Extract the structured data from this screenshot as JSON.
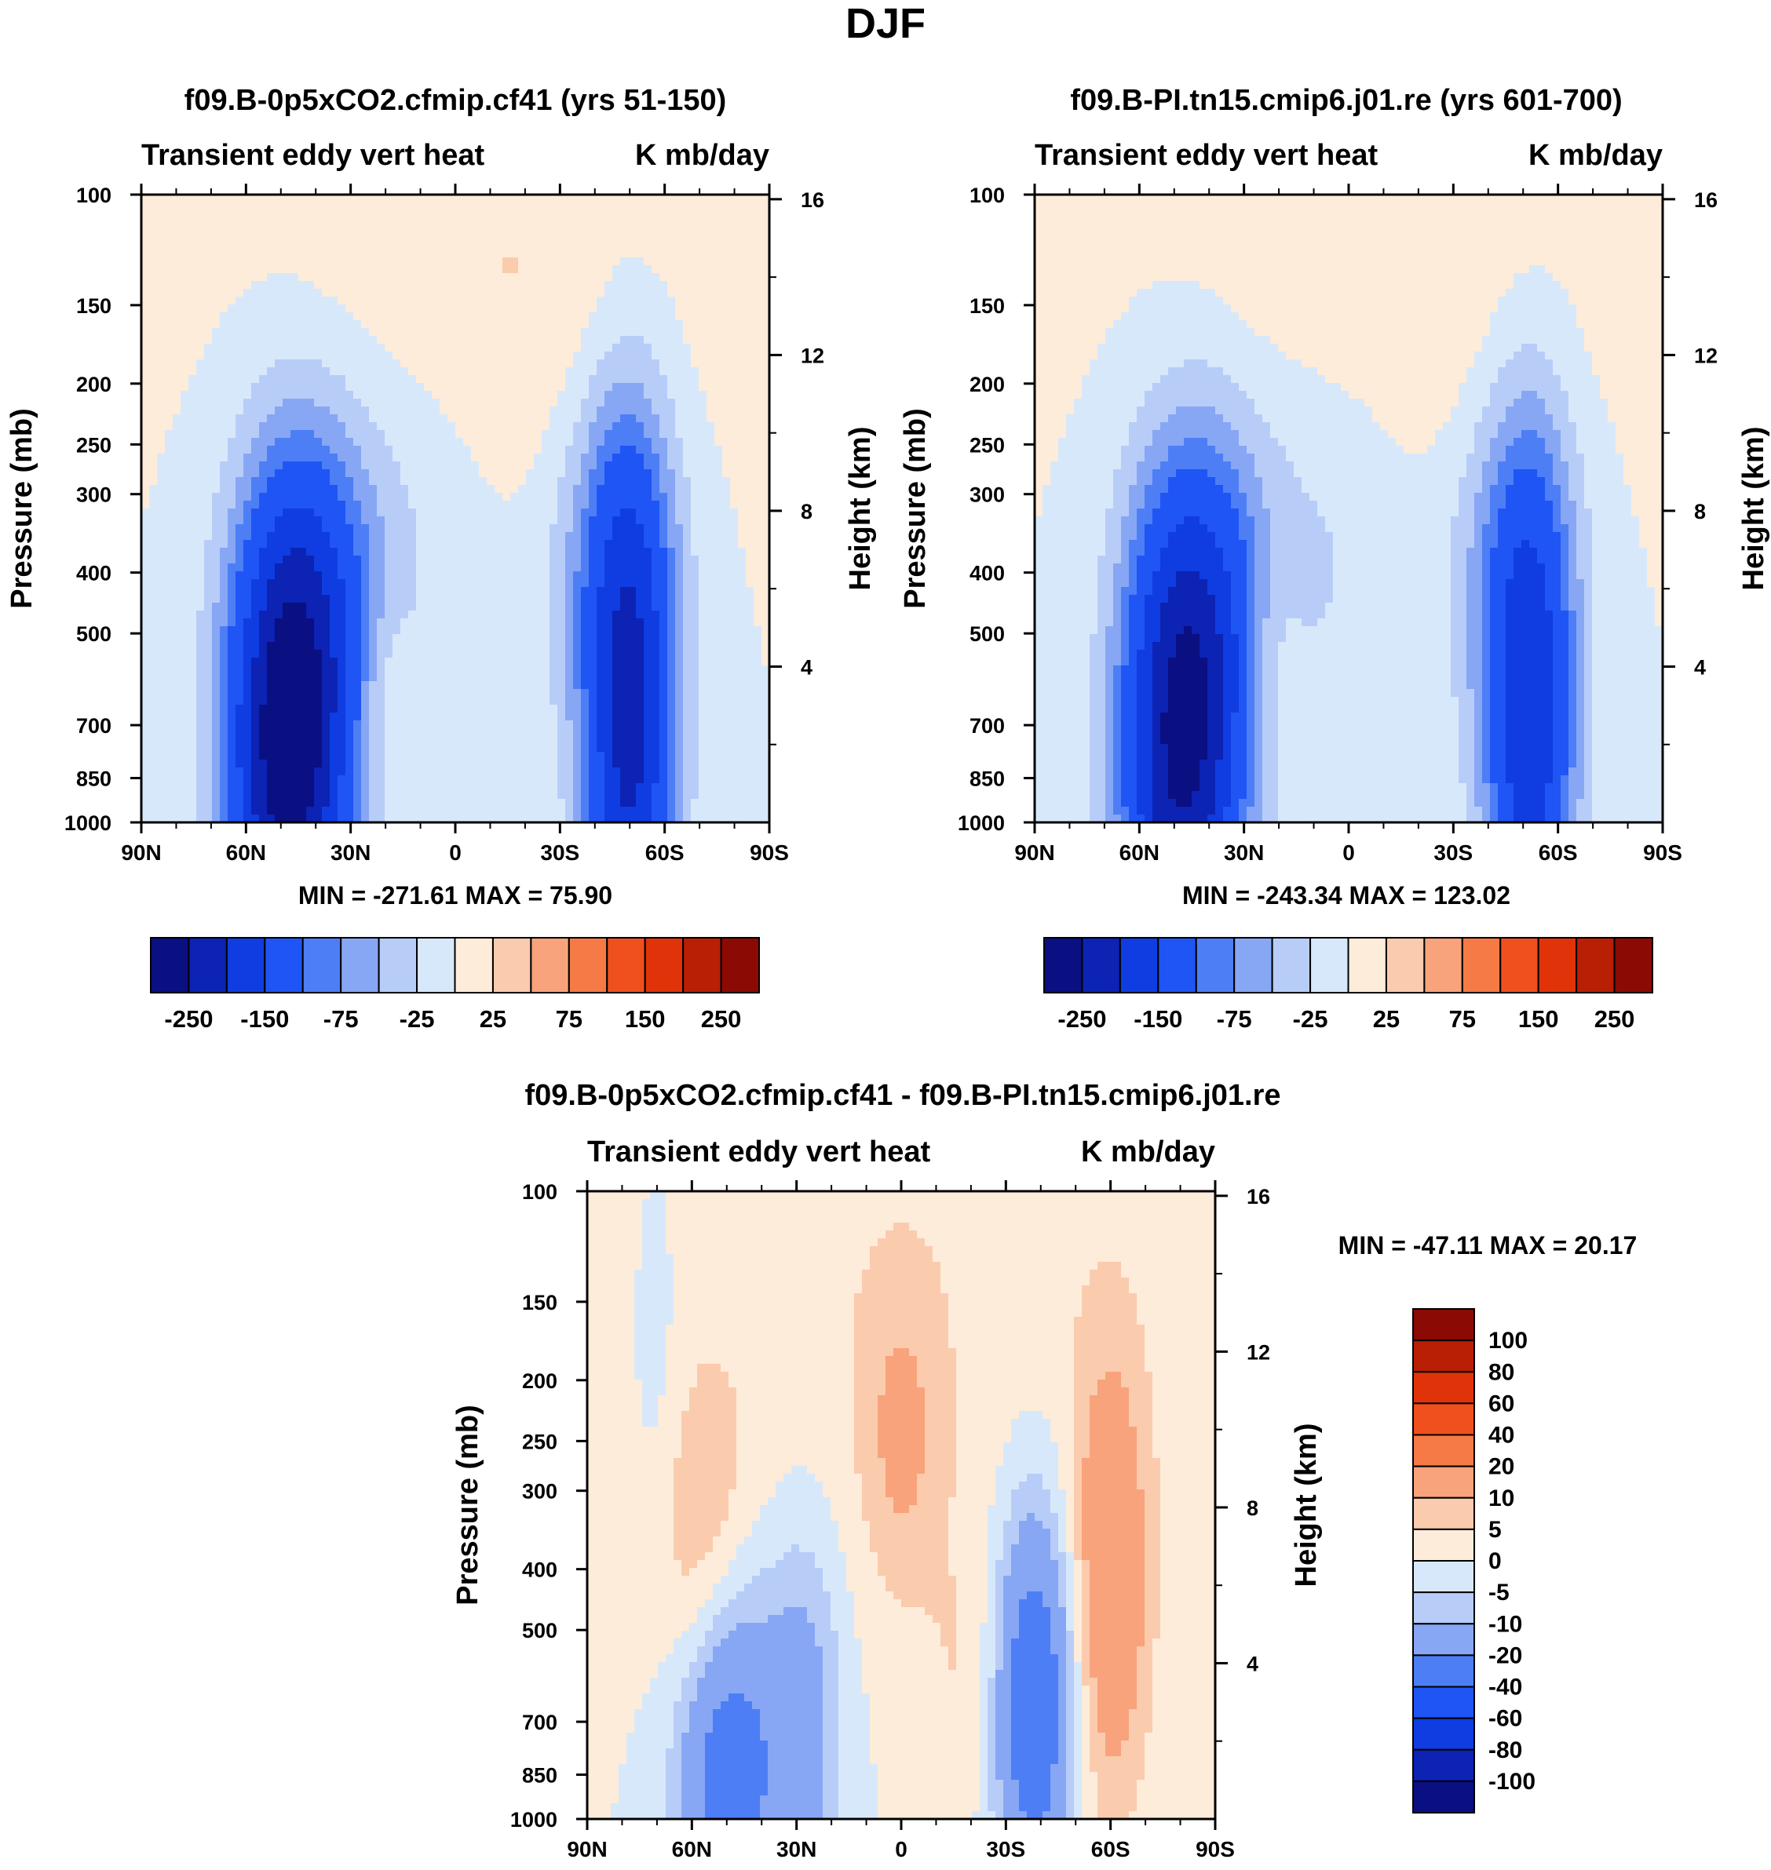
{
  "page_title": "DJF",
  "chart_data": [
    {
      "type": "heatmap",
      "title": "f09.B-0p5xCO2.cfmip.cf41 (yrs 51-150)",
      "left_subtitle": "Transient eddy vert heat",
      "right_subtitle": "K mb/day",
      "ylabel": "Pressure (mb)",
      "ylabel_right": "Height (km)",
      "x_ticks": [
        "90N",
        "60N",
        "30N",
        "0",
        "30S",
        "60S",
        "90S"
      ],
      "y_ticks": [
        "100",
        "150",
        "200",
        "250",
        "300",
        "400",
        "500",
        "700",
        "850",
        "1000"
      ],
      "y_ticks_right": [
        "16",
        "12",
        "8",
        "4"
      ],
      "minmax": "MIN = -271.61   MAX =  75.90",
      "colorbar_labels": [
        "-250",
        "-150",
        "-75",
        "-25",
        "25",
        "75",
        "150",
        "250"
      ],
      "fields": [
        {
          "lat": 48,
          "p": 800,
          "amp": -270,
          "slat": 12,
          "sp": 0.62
        },
        {
          "lat": 40,
          "p": 430,
          "amp": -90,
          "slat": 14,
          "sp": 0.5
        },
        {
          "lat": -50,
          "p": 750,
          "amp": -200,
          "slat": 9,
          "sp": 0.75
        },
        {
          "lat": -45,
          "p": 380,
          "amp": -60,
          "slat": 13,
          "sp": 0.5
        },
        {
          "lat": 10,
          "p": 300,
          "amp": -22,
          "slat": 16,
          "sp": 0.55
        },
        {
          "lat": 20,
          "p": 620,
          "amp": 30,
          "slat": 6,
          "sp": 0.2
        },
        {
          "lat": -10,
          "p": 140,
          "amp": 28,
          "slat": 40,
          "sp": 0.55
        }
      ]
    },
    {
      "type": "heatmap",
      "title": "f09.B-PI.tn15.cmip6.j01.re (yrs 601-700)",
      "left_subtitle": "Transient eddy vert heat",
      "right_subtitle": "K mb/day",
      "ylabel": "Pressure (mb)",
      "ylabel_right": "Height (km)",
      "x_ticks": [
        "90N",
        "60N",
        "30N",
        "0",
        "30S",
        "60S",
        "90S"
      ],
      "y_ticks": [
        "100",
        "150",
        "200",
        "250",
        "300",
        "400",
        "500",
        "700",
        "850",
        "1000"
      ],
      "y_ticks_right": [
        "16",
        "12",
        "8",
        "4"
      ],
      "minmax": "MIN = -243.34   MAX = 123.02",
      "colorbar_labels": [
        "-250",
        "-150",
        "-75",
        "-25",
        "25",
        "75",
        "150",
        "250"
      ],
      "fields": [
        {
          "lat": 48,
          "p": 800,
          "amp": -240,
          "slat": 12,
          "sp": 0.62
        },
        {
          "lat": 40,
          "p": 430,
          "amp": -85,
          "slat": 14,
          "sp": 0.5
        },
        {
          "lat": -52,
          "p": 760,
          "amp": -170,
          "slat": 9,
          "sp": 0.75
        },
        {
          "lat": -47,
          "p": 380,
          "amp": -55,
          "slat": 13,
          "sp": 0.5
        },
        {
          "lat": 5,
          "p": 320,
          "amp": -28,
          "slat": 18,
          "sp": 0.6
        },
        {
          "lat": 22,
          "p": 560,
          "amp": 30,
          "slat": 6,
          "sp": 0.3
        },
        {
          "lat": -10,
          "p": 140,
          "amp": 28,
          "slat": 40,
          "sp": 0.55
        }
      ]
    },
    {
      "type": "heatmap",
      "title": "f09.B-0p5xCO2.cfmip.cf41 - f09.B-PI.tn15.cmip6.j01.re",
      "left_subtitle": "Transient eddy vert heat",
      "right_subtitle": "K mb/day",
      "ylabel": "Pressure (mb)",
      "ylabel_right": "Height (km)",
      "x_ticks": [
        "90N",
        "60N",
        "30N",
        "0",
        "30S",
        "60S",
        "90S"
      ],
      "y_ticks": [
        "100",
        "150",
        "200",
        "250",
        "300",
        "400",
        "500",
        "700",
        "850",
        "1000"
      ],
      "y_ticks_right": [
        "16",
        "12",
        "8",
        "4"
      ],
      "minmax": "MIN = -47.11   MAX =  20.17",
      "colorbar_labels": [
        "100",
        "80",
        "60",
        "40",
        "20",
        "10",
        "5",
        "0",
        "-5",
        "-10",
        "-20",
        "-40",
        "-60",
        "-80",
        "-100"
      ],
      "fields": [
        {
          "lat": 55,
          "p": 400,
          "amp": 14,
          "slat": 10,
          "sp": 0.45
        },
        {
          "lat": 50,
          "p": 800,
          "amp": -30,
          "slat": 10,
          "sp": 0.55
        },
        {
          "lat": 28,
          "p": 700,
          "amp": -14,
          "slat": 8,
          "sp": 0.5
        },
        {
          "lat": 0,
          "p": 250,
          "amp": 9,
          "slat": 8,
          "sp": 0.4
        },
        {
          "lat": -38,
          "p": 650,
          "amp": -32,
          "slat": 8,
          "sp": 0.5
        },
        {
          "lat": -60,
          "p": 420,
          "amp": 18,
          "slat": 8,
          "sp": 0.6
        },
        {
          "lat": -20,
          "p": 600,
          "amp": 5,
          "slat": 10,
          "sp": 0.4
        },
        {
          "lat": 70,
          "p": 180,
          "amp": -4,
          "slat": 5,
          "sp": 0.5
        },
        {
          "lat": 0,
          "p": 150,
          "amp": 4,
          "slat": 60,
          "sp": 0.8
        }
      ]
    }
  ],
  "colors": {
    "panel_palette": [
      "#0a0f82",
      "#0c23b4",
      "#0f3de1",
      "#1f55f5",
      "#4d7ef5",
      "#87a7f5",
      "#b7cdf8",
      "#d8e8fb",
      "#fdecd9",
      "#fbcbae",
      "#f8a37c",
      "#f57a45",
      "#f0501d",
      "#e13309",
      "#b81f04",
      "#8b0a04"
    ],
    "diff_palette": [
      "#0a0f82",
      "#0c23b4",
      "#0f3de1",
      "#1f55f5",
      "#4d7ef5",
      "#87a7f5",
      "#b7cdf8",
      "#d8e8fb",
      "#fdecd9",
      "#fbcbae",
      "#f8a37c",
      "#f57a45",
      "#f0501d",
      "#e13309",
      "#b81f04",
      "#8b0a04"
    ]
  }
}
